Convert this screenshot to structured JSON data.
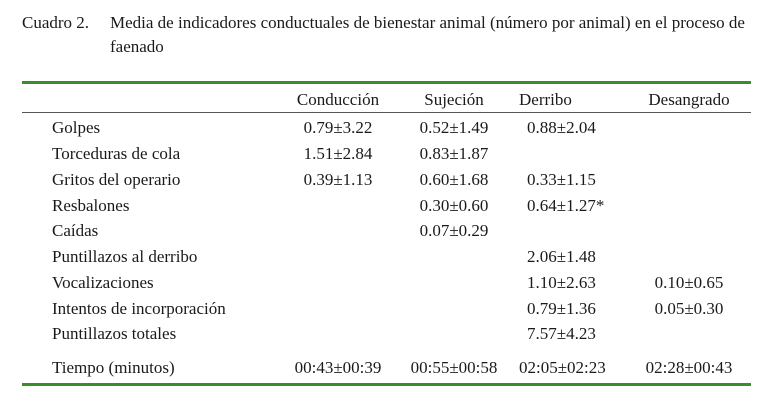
{
  "caption": {
    "label": "Cuadro 2.",
    "text": "Media de indicadores conductuales de bienestar animal (número por animal) en el proceso de faenado"
  },
  "table": {
    "columns": [
      "Conducción",
      "Sujeción",
      "Derribo",
      "Desangrado"
    ],
    "rows": [
      {
        "label": "Golpes",
        "values": [
          "0.79±3.22",
          "0.52±1.49",
          "0.88±2.04",
          ""
        ]
      },
      {
        "label": "Torceduras de cola",
        "values": [
          "1.51±2.84",
          "0.83±1.87",
          "",
          ""
        ]
      },
      {
        "label": "Gritos del operario",
        "values": [
          "0.39±1.13",
          "0.60±1.68",
          "0.33±1.15",
          ""
        ]
      },
      {
        "label": "Resbalones",
        "values": [
          "",
          "0.30±0.60",
          "0.64±1.27*",
          ""
        ]
      },
      {
        "label": "Caídas",
        "values": [
          "",
          "0.07±0.29",
          "",
          ""
        ]
      },
      {
        "label": "Puntillazos al derribo",
        "values": [
          "",
          "",
          "2.06±1.48",
          ""
        ]
      },
      {
        "label": "Vocalizaciones",
        "values": [
          "",
          "",
          "1.10±2.63",
          "0.10±0.65"
        ]
      },
      {
        "label": "Intentos de incorporación",
        "values": [
          "",
          "",
          "0.79±1.36",
          "0.05±0.30"
        ]
      },
      {
        "label": "Puntillazos totales",
        "values": [
          "",
          "",
          "7.57±4.23",
          ""
        ]
      },
      {
        "label": "Tiempo (minutos)",
        "values": [
          "00:43±00:39",
          "00:55±00:58",
          "02:05±02:23",
          "02:28±00:43"
        ]
      }
    ]
  },
  "colors": {
    "rule": "#3b8c2a"
  }
}
